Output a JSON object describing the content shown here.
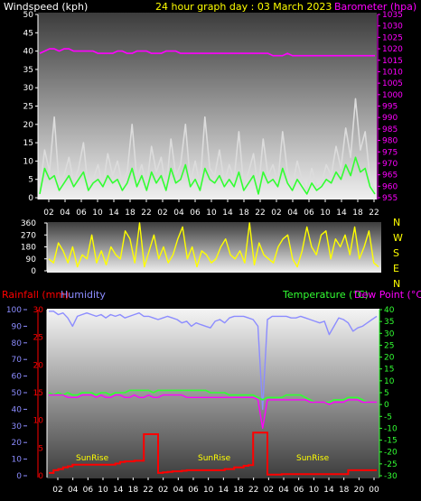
{
  "header": {
    "windspeed_label": "Windspeed (kph)",
    "title": "24 hour graph day : 03 March 2023",
    "barometer_label": "Barometer (hpa)"
  },
  "bottom_header": {
    "rainfall_label": "Rainfall (mm)",
    "humidity_label": "Humidity",
    "temperature_label": "Temperature (°C)",
    "dewpoint_label": "Dew Point (°C)"
  },
  "sunrise_labels": [
    "SunRise",
    "SunRise",
    "SunRise"
  ],
  "compass": [
    "N",
    "W",
    "S",
    "E",
    "N"
  ],
  "colors": {
    "wind_gust": "#dcdcdc",
    "wind_avg": "#32ff32",
    "barometer": "#ff00ff",
    "direction": "#ffff00",
    "humidity": "#8c8cff",
    "temperature": "#32ff32",
    "dewpoint": "#ff00ff",
    "rainfall": "#ff0000",
    "sunrise": "#ffff00"
  },
  "chart_data": [
    {
      "type": "line",
      "xlabel": "",
      "x_tick_labels": [
        "02",
        "04",
        "06",
        "10",
        "14",
        "18",
        "22",
        "02",
        "04",
        "06",
        "10",
        "14",
        "18",
        "22",
        "02",
        "04",
        "06",
        "10",
        "14",
        "18",
        "22"
      ],
      "ylabel": "Windspeed (kph)",
      "ylim": [
        0,
        50
      ],
      "y_ticks": [
        0,
        5,
        10,
        15,
        20,
        25,
        30,
        35,
        40,
        45,
        50
      ],
      "y2label": "Barometer (hpa)",
      "y2lim": [
        955,
        1035
      ],
      "y2_ticks": [
        955,
        960,
        965,
        970,
        975,
        980,
        985,
        990,
        995,
        1000,
        1005,
        1010,
        1015,
        1020,
        1025,
        1030,
        1035
      ],
      "series": [
        {
          "name": "Windspeed (kph)",
          "axis": "left",
          "values": [
            2,
            13,
            7,
            22,
            3,
            6,
            11,
            4,
            8,
            15,
            2,
            5,
            9,
            3,
            12,
            6,
            10,
            4,
            7,
            20,
            5,
            9,
            3,
            14,
            7,
            11,
            2,
            16,
            6,
            9,
            20,
            4,
            10,
            3,
            22,
            8,
            6,
            13,
            4,
            9,
            5,
            18,
            3,
            7,
            12,
            2,
            16,
            6,
            9,
            4,
            18,
            7,
            3,
            10,
            5,
            2,
            8,
            3,
            4,
            9,
            6,
            14,
            8,
            19,
            11,
            27,
            13,
            18,
            5,
            2
          ]
        },
        {
          "name": "Windspeed average",
          "axis": "left",
          "values": [
            1,
            8,
            5,
            6,
            2,
            4,
            6,
            3,
            5,
            7,
            2,
            4,
            5,
            3,
            6,
            4,
            5,
            2,
            4,
            8,
            3,
            6,
            2,
            7,
            4,
            6,
            2,
            8,
            4,
            5,
            9,
            3,
            5,
            2,
            8,
            5,
            4,
            6,
            3,
            5,
            3,
            7,
            2,
            4,
            6,
            1,
            7,
            4,
            5,
            3,
            8,
            4,
            2,
            5,
            3,
            1,
            4,
            2,
            3,
            5,
            4,
            7,
            5,
            9,
            6,
            11,
            7,
            8,
            3,
            1
          ]
        },
        {
          "name": "Barometer (hpa)",
          "axis": "right",
          "values": [
            1018,
            1019,
            1020,
            1020,
            1019,
            1020,
            1020,
            1019,
            1019,
            1019,
            1019,
            1019,
            1018,
            1018,
            1018,
            1018,
            1019,
            1019,
            1018,
            1018,
            1019,
            1019,
            1019,
            1018,
            1018,
            1018,
            1019,
            1019,
            1019,
            1018,
            1018,
            1018,
            1018,
            1018,
            1018,
            1018,
            1018,
            1018,
            1018,
            1018,
            1018,
            1018,
            1018,
            1018,
            1018,
            1018,
            1018,
            1018,
            1017,
            1017,
            1017,
            1018,
            1017,
            1017,
            1017,
            1017,
            1017,
            1017,
            1017,
            1017,
            1017,
            1017,
            1017,
            1017,
            1017,
            1017,
            1017,
            1017,
            1017,
            1017
          ]
        }
      ]
    },
    {
      "type": "line",
      "xlabel": "",
      "ylabel": "Wind direction",
      "ylim": [
        0,
        360
      ],
      "y_ticks": [
        0,
        90,
        180,
        270,
        360
      ],
      "series": [
        {
          "name": "Wind direction",
          "values": [
            90,
            60,
            210,
            150,
            60,
            180,
            30,
            120,
            90,
            270,
            60,
            150,
            45,
            180,
            120,
            90,
            300,
            240,
            60,
            360,
            30,
            150,
            270,
            90,
            180,
            60,
            120,
            240,
            330,
            90,
            180,
            30,
            150,
            120,
            60,
            90,
            180,
            240,
            120,
            90,
            150,
            60,
            360,
            45,
            210,
            120,
            90,
            60,
            180,
            240,
            270,
            90,
            30,
            150,
            330,
            180,
            120,
            270,
            300,
            90,
            240,
            180,
            270,
            120,
            330,
            90,
            180,
            300,
            60,
            30
          ]
        }
      ]
    },
    {
      "type": "line",
      "xlabel": "",
      "x_tick_labels": [
        "02",
        "04",
        "06",
        "10",
        "14",
        "18",
        "22",
        "02",
        "04",
        "06",
        "10",
        "14",
        "18",
        "22",
        "02",
        "04",
        "06",
        "10",
        "14",
        "18",
        "20",
        "00"
      ],
      "ylabel": "Rainfall (mm) / Humidity",
      "ylim": [
        0,
        30
      ],
      "y_ticks": [
        0,
        5,
        10,
        15,
        20,
        25,
        30
      ],
      "y_ticks_humidity": [
        0,
        10,
        20,
        30,
        40,
        50,
        60,
        70,
        80,
        90,
        100
      ],
      "y2label": "Temperature (°C) / Dew Point (°C)",
      "y2lim": [
        -30,
        40
      ],
      "y2_ticks": [
        -30,
        -25,
        -20,
        -15,
        -10,
        -5,
        0,
        5,
        10,
        15,
        20,
        25,
        30,
        35,
        40
      ],
      "series": [
        {
          "name": "Humidity",
          "axis": "left",
          "values": [
            99,
            99,
            97,
            98,
            95,
            90,
            96,
            97,
            98,
            97,
            96,
            97,
            95,
            97,
            96,
            97,
            95,
            96,
            97,
            98,
            96,
            96,
            95,
            94,
            95,
            96,
            95,
            94,
            92,
            93,
            90,
            92,
            91,
            90,
            89,
            93,
            94,
            92,
            95,
            96,
            96,
            96,
            95,
            94,
            90,
            40,
            94,
            96,
            96,
            96,
            96,
            95,
            95,
            96,
            95,
            94,
            93,
            92,
            93,
            85,
            90,
            95,
            94,
            92,
            87,
            89,
            90,
            92,
            94,
            96
          ]
        },
        {
          "name": "Temperature (°C)",
          "axis": "right",
          "values": [
            5,
            4,
            5,
            4,
            5,
            4,
            4,
            5,
            5,
            5,
            4,
            5,
            5,
            4,
            5,
            5,
            5,
            6,
            6,
            6,
            6,
            6,
            5,
            6,
            6,
            6,
            6,
            6,
            6,
            6,
            6,
            6,
            6,
            6,
            5,
            5,
            5,
            5,
            4,
            4,
            4,
            4,
            4,
            4,
            3,
            2,
            3,
            3,
            3,
            3,
            4,
            4,
            4,
            4,
            3,
            2,
            1,
            1,
            1,
            1,
            2,
            2,
            2,
            3,
            3,
            3,
            2,
            1,
            1,
            1
          ]
        },
        {
          "name": "Dew Point (°C)",
          "axis": "right",
          "values": [
            4,
            4,
            4,
            4,
            3,
            3,
            3,
            4,
            4,
            4,
            3,
            4,
            3,
            3,
            4,
            4,
            3,
            3,
            4,
            3,
            3,
            4,
            3,
            3,
            4,
            4,
            4,
            4,
            4,
            3,
            3,
            3,
            3,
            3,
            3,
            3,
            3,
            3,
            3,
            3,
            3,
            3,
            3,
            3,
            2,
            -10,
            2,
            2,
            2,
            2,
            2,
            2,
            2,
            2,
            2,
            1,
            1,
            1,
            1,
            0,
            1,
            1,
            1,
            2,
            2,
            2,
            1,
            1,
            1,
            1
          ]
        },
        {
          "name": "Rainfall (mm)",
          "axis": "left",
          "values": [
            0.5,
            1,
            1.2,
            1.5,
            1.7,
            2,
            2,
            2,
            2,
            2,
            2,
            2,
            2,
            2,
            2.2,
            2.5,
            2.6,
            2.6,
            2.7,
            2.7,
            7.5,
            7.5,
            7.5,
            0.5,
            0.6,
            0.7,
            0.8,
            0.8,
            0.9,
            1,
            1,
            1,
            1,
            1,
            1,
            1,
            1,
            1.2,
            1.2,
            1.5,
            1.5,
            1.8,
            1.9,
            7.8,
            7.8,
            7.8,
            0.2,
            0.2,
            0.2,
            0.3,
            0.3,
            0.3,
            0.3,
            0.3,
            0.3,
            0.3,
            0.3,
            0.3,
            0.3,
            0.3,
            0.3,
            0.3,
            0.3,
            1,
            1,
            1,
            1,
            1,
            1,
            1
          ]
        }
      ]
    }
  ]
}
